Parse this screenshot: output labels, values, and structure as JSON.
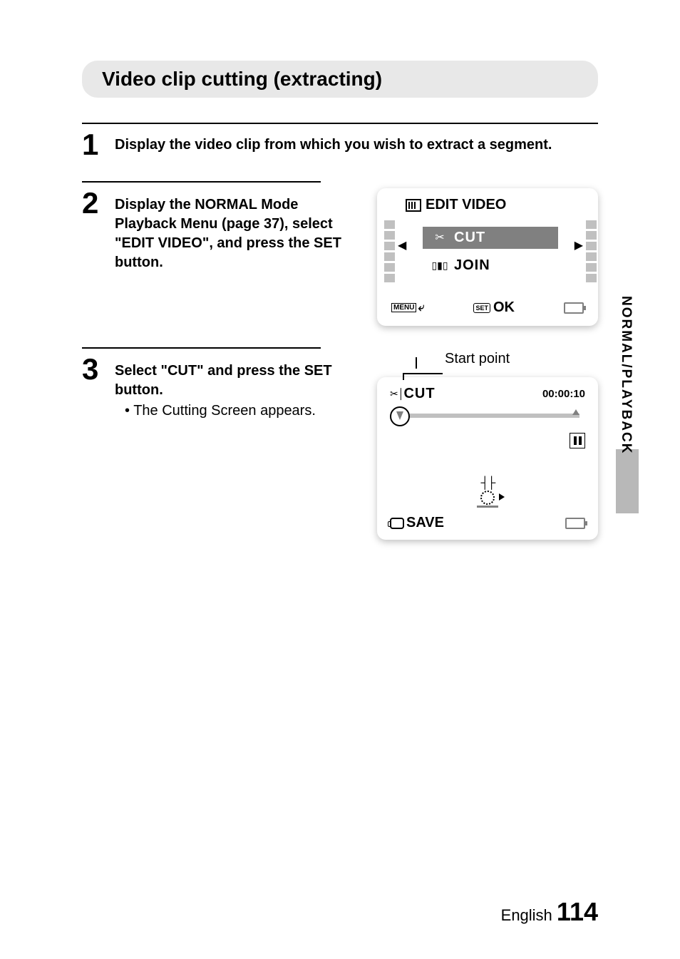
{
  "title": "Video clip cutting (extracting)",
  "steps": {
    "s1": {
      "num": "1",
      "heading": "Display the video clip from which you wish to extract a segment."
    },
    "s2": {
      "num": "2",
      "heading": "Display the NORMAL Mode Playback Menu (page 37), select \"EDIT VIDEO\", and press the SET button."
    },
    "s3": {
      "num": "3",
      "heading": "Select \"CUT\" and press the SET button.",
      "bullet": "• The Cutting Screen appears."
    }
  },
  "editVideoScreen": {
    "title": "EDIT VIDEO",
    "cut": "CUT",
    "join": "JOIN",
    "menu": "MENU",
    "set": "SET",
    "ok": "OK"
  },
  "cutScreen": {
    "startPoint": "Start point",
    "cut": "CUT",
    "timecode": "00:00:10",
    "save": "SAVE"
  },
  "sideTab": "NORMAL/PLAYBACK",
  "footer": {
    "lang": "English",
    "page": "114"
  },
  "colors": {
    "titleBarBg": "#e8e8e8",
    "activeBg": "#808080",
    "filmHole": "#c0c0c0",
    "sideTabBox": "#b8b8b8"
  }
}
